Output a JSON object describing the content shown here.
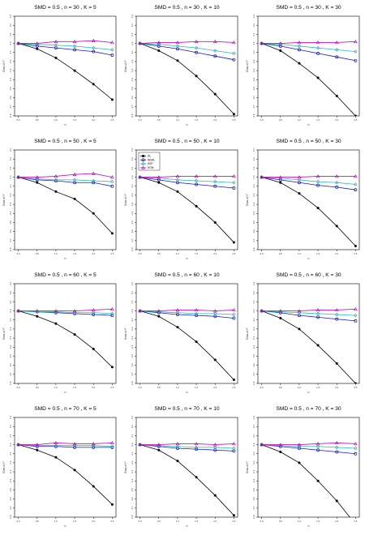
{
  "common": {
    "xlabel": "τ²",
    "ylabel": "Bias of I²",
    "xticks": [
      "0.0",
      "0.5",
      "1.0",
      "1.5",
      "2.0",
      "2.5"
    ],
    "yticks": [
      "0.3",
      "0.2",
      "0.1",
      "0.0",
      "-0.1",
      "-0.2",
      "-0.3",
      "-0.4",
      "-0.5",
      "-0.6",
      "-0.7",
      "-0.8"
    ],
    "ylim": [
      -0.8,
      0.3
    ],
    "legend": {
      "panel_index": 4,
      "position": "top-left",
      "entries": [
        "DL",
        "REML",
        "HSP",
        "HOM"
      ]
    },
    "colors": {
      "DL": "#000000",
      "REML": "#1a1aa6",
      "HSP": "#2ab3b3",
      "HOM": "#b41ab4"
    }
  },
  "chart_data": [
    {
      "type": "line",
      "title": "SMD = 0.5 , n = 30 , K = 5",
      "x": [
        0,
        0.5,
        1,
        1.5,
        2,
        2.5
      ],
      "series": [
        {
          "name": "DL",
          "values": [
            0.0,
            -0.06,
            -0.16,
            -0.3,
            -0.45,
            -0.62
          ]
        },
        {
          "name": "REML",
          "values": [
            0.0,
            -0.03,
            -0.05,
            -0.07,
            -0.09,
            -0.13
          ]
        },
        {
          "name": "HSP",
          "values": [
            0.0,
            -0.01,
            -0.02,
            -0.03,
            -0.05,
            -0.07
          ]
        },
        {
          "name": "HOM",
          "values": [
            0.0,
            0.0,
            0.02,
            0.02,
            0.03,
            0.01
          ]
        }
      ]
    },
    {
      "type": "line",
      "title": "SMD = 0.5 , n = 30 , K = 10",
      "x": [
        0,
        0.5,
        1,
        1.5,
        2,
        2.5
      ],
      "series": [
        {
          "name": "DL",
          "values": [
            0.0,
            -0.08,
            -0.19,
            -0.36,
            -0.56,
            -0.78
          ]
        },
        {
          "name": "REML",
          "values": [
            0.0,
            -0.03,
            -0.06,
            -0.1,
            -0.14,
            -0.18
          ]
        },
        {
          "name": "HSP",
          "values": [
            0.0,
            -0.01,
            -0.03,
            -0.05,
            -0.08,
            -0.11
          ]
        },
        {
          "name": "HOM",
          "values": [
            0.0,
            0.01,
            0.01,
            0.02,
            0.02,
            0.01
          ]
        }
      ]
    },
    {
      "type": "line",
      "title": "SMD = 0.5 , n = 30 , K = 30",
      "x": [
        0,
        0.5,
        1,
        1.5,
        2,
        2.5
      ],
      "series": [
        {
          "name": "DL",
          "values": [
            0.0,
            -0.08,
            -0.22,
            -0.38,
            -0.58,
            -0.8
          ]
        },
        {
          "name": "REML",
          "values": [
            0.0,
            -0.03,
            -0.07,
            -0.11,
            -0.15,
            -0.19
          ]
        },
        {
          "name": "HSP",
          "values": [
            0.0,
            -0.01,
            -0.03,
            -0.05,
            -0.07,
            -0.09
          ]
        },
        {
          "name": "HOM",
          "values": [
            0.0,
            0.0,
            0.01,
            0.01,
            0.01,
            0.02
          ]
        }
      ]
    },
    {
      "type": "line",
      "title": "SMD = 0.5 , n = 50 , K = 5",
      "x": [
        0,
        0.5,
        1,
        1.5,
        2,
        2.5
      ],
      "series": [
        {
          "name": "DL",
          "values": [
            0.0,
            -0.06,
            -0.16,
            -0.24,
            -0.4,
            -0.62
          ]
        },
        {
          "name": "REML",
          "values": [
            0.0,
            -0.03,
            -0.04,
            -0.06,
            -0.06,
            -0.1
          ]
        },
        {
          "name": "HSP",
          "values": [
            0.0,
            -0.02,
            -0.03,
            -0.03,
            -0.04,
            -0.05
          ]
        },
        {
          "name": "HOM",
          "values": [
            0.0,
            0.0,
            0.01,
            0.03,
            0.04,
            0.0
          ]
        }
      ]
    },
    {
      "type": "line",
      "title": "SMD = 0.5 , n = 50 , K = 10",
      "x": [
        0,
        0.5,
        1,
        1.5,
        2,
        2.5
      ],
      "series": [
        {
          "name": "DL",
          "values": [
            0.0,
            -0.06,
            -0.16,
            -0.32,
            -0.5,
            -0.72
          ]
        },
        {
          "name": "REML",
          "values": [
            0.0,
            -0.03,
            -0.06,
            -0.08,
            -0.1,
            -0.12
          ]
        },
        {
          "name": "HSP",
          "values": [
            0.0,
            -0.01,
            -0.03,
            -0.04,
            -0.05,
            -0.06
          ]
        },
        {
          "name": "HOM",
          "values": [
            0.0,
            0.0,
            0.01,
            0.01,
            0.01,
            0.01
          ]
        }
      ]
    },
    {
      "type": "line",
      "title": "SMD = 0.5 , n = 50 , K = 30",
      "x": [
        0,
        0.5,
        1,
        1.5,
        2,
        2.5
      ],
      "series": [
        {
          "name": "DL",
          "values": [
            0.0,
            -0.06,
            -0.18,
            -0.34,
            -0.54,
            -0.76
          ]
        },
        {
          "name": "REML",
          "values": [
            0.0,
            -0.03,
            -0.06,
            -0.09,
            -0.11,
            -0.14
          ]
        },
        {
          "name": "HSP",
          "values": [
            0.0,
            -0.01,
            -0.03,
            -0.05,
            -0.06,
            -0.08
          ]
        },
        {
          "name": "HOM",
          "values": [
            0.0,
            0.0,
            0.0,
            0.01,
            0.01,
            0.01
          ]
        }
      ]
    },
    {
      "type": "line",
      "title": "SMD = 0.5 , n = 60 , K = 5",
      "x": [
        0,
        0.5,
        1,
        1.5,
        2,
        2.5
      ],
      "series": [
        {
          "name": "DL",
          "values": [
            0.0,
            -0.06,
            -0.14,
            -0.26,
            -0.42,
            -0.62
          ]
        },
        {
          "name": "REML",
          "values": [
            0.0,
            -0.01,
            -0.02,
            -0.03,
            -0.04,
            -0.05
          ]
        },
        {
          "name": "HSP",
          "values": [
            0.0,
            -0.01,
            -0.01,
            -0.02,
            -0.02,
            -0.03
          ]
        },
        {
          "name": "HOM",
          "values": [
            0.0,
            0.0,
            0.0,
            0.0,
            0.01,
            0.02
          ]
        }
      ]
    },
    {
      "type": "line",
      "title": "SMD = 0.5 , n = 60 , K = 10",
      "x": [
        0,
        0.5,
        1,
        1.5,
        2,
        2.5
      ],
      "series": [
        {
          "name": "DL",
          "values": [
            0.0,
            -0.06,
            -0.18,
            -0.34,
            -0.54,
            -0.76
          ]
        },
        {
          "name": "REML",
          "values": [
            0.0,
            -0.02,
            -0.04,
            -0.05,
            -0.06,
            -0.08
          ]
        },
        {
          "name": "HSP",
          "values": [
            0.0,
            -0.01,
            -0.02,
            -0.03,
            -0.03,
            -0.04
          ]
        },
        {
          "name": "HOM",
          "values": [
            0.0,
            0.0,
            0.01,
            0.01,
            0.0,
            0.01
          ]
        }
      ]
    },
    {
      "type": "line",
      "title": "SMD = 0.5 , n = 60 , K = 30",
      "x": [
        0,
        0.5,
        1,
        1.5,
        2,
        2.5
      ],
      "series": [
        {
          "name": "DL",
          "values": [
            0.0,
            -0.08,
            -0.2,
            -0.38,
            -0.58,
            -0.8
          ]
        },
        {
          "name": "REML",
          "values": [
            0.0,
            -0.02,
            -0.05,
            -0.07,
            -0.09,
            -0.11
          ]
        },
        {
          "name": "HSP",
          "values": [
            0.0,
            -0.01,
            -0.02,
            -0.03,
            -0.04,
            -0.05
          ]
        },
        {
          "name": "HOM",
          "values": [
            0.0,
            0.0,
            0.0,
            0.01,
            0.01,
            0.02
          ]
        }
      ]
    },
    {
      "type": "line",
      "title": "SMD = 0.5 , n = 70 , K = 5",
      "x": [
        0,
        0.5,
        1,
        1.5,
        2,
        2.5
      ],
      "series": [
        {
          "name": "DL",
          "values": [
            0.0,
            -0.06,
            -0.14,
            -0.28,
            -0.46,
            -0.66
          ]
        },
        {
          "name": "REML",
          "values": [
            0.0,
            -0.02,
            -0.02,
            -0.03,
            -0.03,
            -0.03
          ]
        },
        {
          "name": "HSP",
          "values": [
            0.0,
            -0.01,
            -0.01,
            -0.01,
            -0.01,
            -0.02
          ]
        },
        {
          "name": "HOM",
          "values": [
            0.0,
            0.0,
            0.02,
            0.01,
            0.01,
            0.02
          ]
        }
      ]
    },
    {
      "type": "line",
      "title": "SMD = 0.5 , n = 70 , K = 10",
      "x": [
        0,
        0.5,
        1,
        1.5,
        2,
        2.5
      ],
      "series": [
        {
          "name": "DL",
          "values": [
            0.0,
            -0.06,
            -0.18,
            -0.36,
            -0.56,
            -0.78
          ]
        },
        {
          "name": "REML",
          "values": [
            0.0,
            -0.02,
            -0.04,
            -0.05,
            -0.06,
            -0.07
          ]
        },
        {
          "name": "HSP",
          "values": [
            0.0,
            -0.01,
            -0.02,
            -0.03,
            -0.03,
            -0.04
          ]
        },
        {
          "name": "HOM",
          "values": [
            0.0,
            0.0,
            0.01,
            0.01,
            0.0,
            0.01
          ]
        }
      ]
    },
    {
      "type": "line",
      "title": "SMD = 0.5 , n = 70 , K = 30",
      "x": [
        0,
        0.5,
        1,
        1.5,
        2,
        2.5
      ],
      "series": [
        {
          "name": "DL",
          "values": [
            0.0,
            -0.08,
            -0.2,
            -0.4,
            -0.62,
            -0.88
          ]
        },
        {
          "name": "REML",
          "values": [
            0.0,
            -0.02,
            -0.04,
            -0.06,
            -0.08,
            -0.1
          ]
        },
        {
          "name": "HSP",
          "values": [
            0.0,
            -0.01,
            -0.02,
            -0.02,
            -0.03,
            -0.04
          ]
        },
        {
          "name": "HOM",
          "values": [
            0.0,
            0.0,
            0.0,
            0.01,
            0.02,
            0.01
          ]
        }
      ]
    }
  ]
}
